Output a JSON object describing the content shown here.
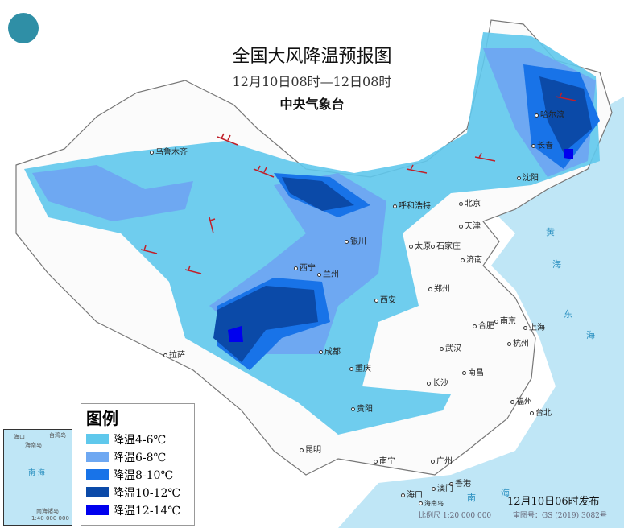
{
  "header": {
    "title": "全国大风降温预报图",
    "period": "12月10日08时—12日08时",
    "agency": "中央气象台",
    "logo": "cma-logo"
  },
  "legend": {
    "title": "图例",
    "items": [
      {
        "label": "降温4-6℃",
        "color": "#5fc8ec"
      },
      {
        "label": "降温6-8℃",
        "color": "#6ea8f2"
      },
      {
        "label": "降温8-10℃",
        "color": "#1873e8"
      },
      {
        "label": "降温10-12℃",
        "color": "#0b4aa8"
      },
      {
        "label": "降温12-14℃",
        "color": "#0000ee"
      }
    ]
  },
  "cities": [
    "乌鲁木齐",
    "哈尔滨",
    "长春",
    "沈阳",
    "北京",
    "天津",
    "呼和浩特",
    "石家庄",
    "太原",
    "济南",
    "银川",
    "兰州",
    "西宁",
    "郑州",
    "西安",
    "合肥",
    "南京",
    "上海",
    "杭州",
    "成都",
    "武汉",
    "重庆",
    "长沙",
    "南昌",
    "拉萨",
    "贵阳",
    "福州",
    "台北",
    "昆明",
    "南宁",
    "广州",
    "香港",
    "澳门",
    "海口"
  ],
  "seas": [
    "黄",
    "海",
    "东",
    "海",
    "南",
    "海"
  ],
  "inset": {
    "sea": "南 海",
    "islands": "南海诸岛",
    "scale": "1:40 000 000",
    "labels": [
      "海口",
      "海南岛",
      "台湾岛"
    ]
  },
  "footer": {
    "issued": "12月10日06时发布",
    "scale": "比例尺 1:20 000 000",
    "review": "审图号：GS (2019) 3082号",
    "hainan": "海南岛"
  },
  "colors": {
    "sea": "#bfe6f6",
    "land": "#ffffff",
    "wind_barb": "#c0202a"
  }
}
